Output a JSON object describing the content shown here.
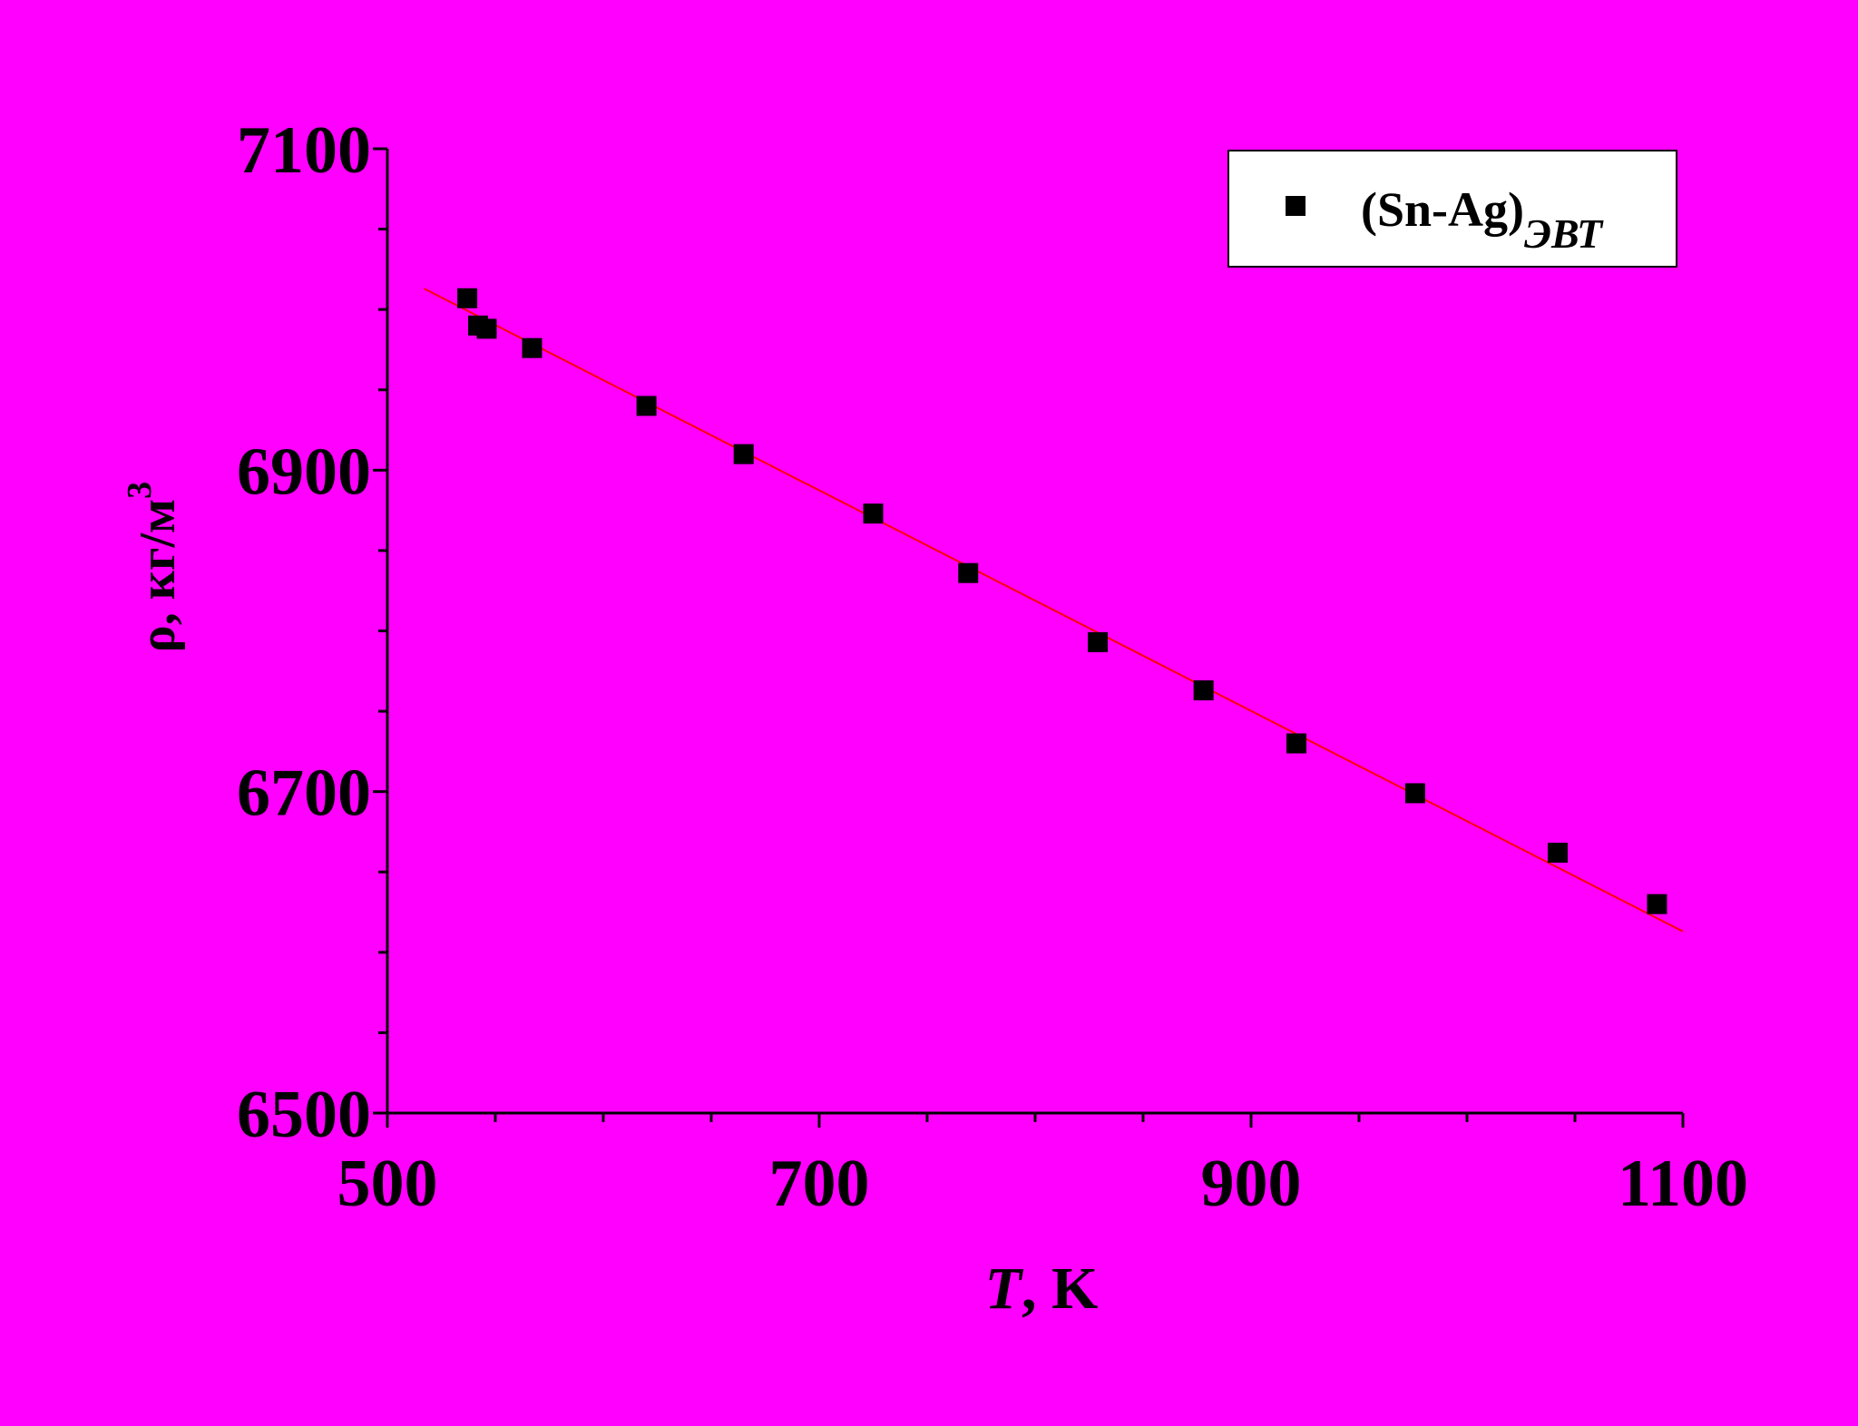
{
  "colors": {
    "background": "#ff00ff",
    "axes": "#000000",
    "markers": "#000000",
    "fit_line": "#ff0000"
  },
  "chart_data": {
    "type": "scatter",
    "title": "",
    "xlabel": {
      "italic_part": "T",
      "rest": ", K"
    },
    "ylabel": {
      "base": "ρ, кг/м",
      "superscript": "3"
    },
    "xlim": [
      500,
      1100
    ],
    "ylim": [
      6500,
      7100
    ],
    "x_major_ticks": [
      500,
      700,
      900,
      1100
    ],
    "x_minor_step": 50,
    "y_major_ticks": [
      6500,
      6700,
      6900,
      7100
    ],
    "y_minor_step": 50,
    "x_tick_labels": [
      "500",
      "700",
      "900",
      "1100"
    ],
    "y_tick_labels": [
      "6500",
      "6700",
      "6900",
      "7100"
    ],
    "grid": false,
    "legend": {
      "position": "top-right",
      "label_main": "(Sn-Ag)",
      "label_subscript": "ЭВТ"
    },
    "series": [
      {
        "name": "(Sn-Ag)ЭВТ",
        "marker": "square",
        "x": [
          537,
          542,
          546,
          567,
          620,
          665,
          725,
          769,
          829,
          878,
          921,
          976,
          1042,
          1088
        ],
        "y": [
          7007,
          6990,
          6988,
          6976,
          6940,
          6910,
          6873,
          6836,
          6793,
          6763,
          6730,
          6699,
          6662,
          6630
        ]
      }
    ],
    "fit_line": {
      "x": [
        517,
        1100
      ],
      "y": [
        7013,
        6613
      ],
      "color": "#ff0000"
    }
  }
}
